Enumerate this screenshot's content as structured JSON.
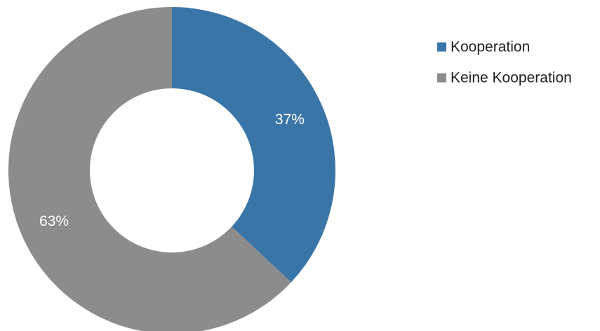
{
  "chart_data": {
    "type": "pie",
    "variant": "donut",
    "categories": [
      "Kooperation",
      "Keine Kooperation"
    ],
    "values": [
      37,
      63
    ],
    "data_labels": [
      "37%",
      "63%"
    ],
    "colors": [
      "#3A75A8",
      "#8C8C8C"
    ],
    "legend": {
      "placement": "top-right",
      "entries": [
        "Kooperation",
        "Keine Kooperation"
      ]
    },
    "title": "",
    "start_angle": "12 o'clock",
    "direction": "clockwise"
  }
}
